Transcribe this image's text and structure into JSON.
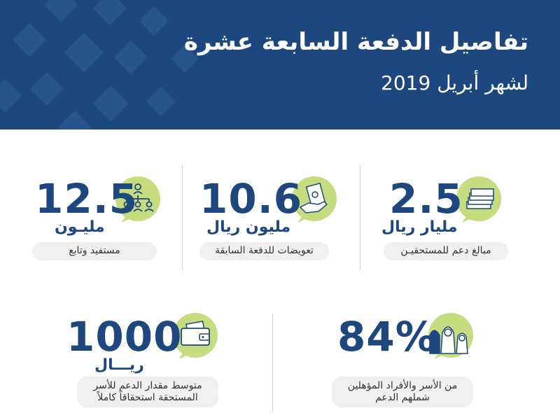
{
  "header": {
    "title": "تفاصيل الدفعة السابعة عشرة",
    "subtitle": "لشهر أبريل 2019"
  },
  "stats": [
    {
      "value": "2.5",
      "unit": "مليار ريال",
      "description": "مبالغ دعم للمستحقيـن",
      "icon": "money-stack-icon"
    },
    {
      "value": "10.6",
      "unit": "مليون ريال",
      "description": "تعويضات للدفعة السابقة",
      "icon": "hand-money-icon"
    },
    {
      "value": "12.5",
      "unit": "مليـون",
      "description": "مستفيد وتابع",
      "icon": "people-hierarchy-icon"
    },
    {
      "value": "84%",
      "unit": "",
      "description": "من الأسر والأفراد المؤهلين شملهم الدعم",
      "icon": "family-icon"
    },
    {
      "value": "1000",
      "unit": "ريـــال",
      "description": "متوسط مقدار الدعم للأسر المستحقة استحقاقاً كاملاً",
      "icon": "wallet-icon"
    }
  ],
  "colors": {
    "brand": "#1d477e",
    "accent": "#c5dd7f",
    "pill": "#f0f0f0"
  }
}
